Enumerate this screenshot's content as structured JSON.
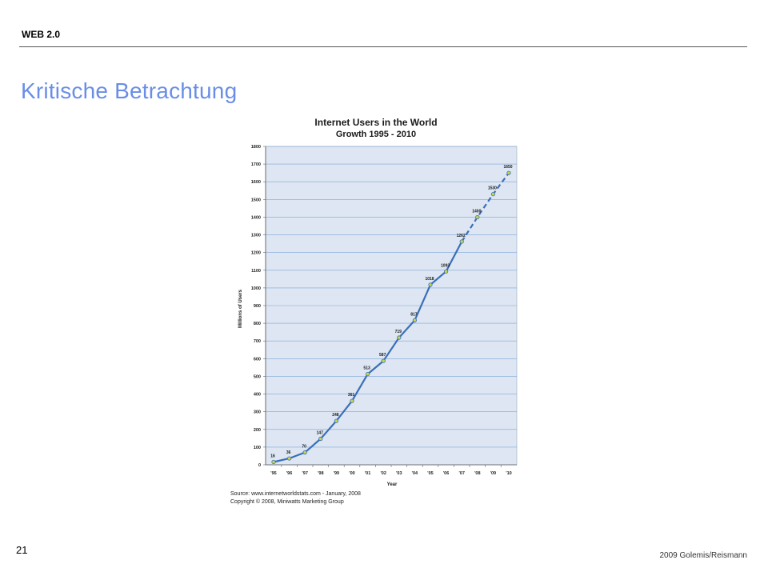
{
  "slide": {
    "header": "WEB 2.0",
    "title": "Kritische Betrachtung",
    "number": "21",
    "copyright": "2009 Golemis/Reismann"
  },
  "chart_data": {
    "type": "line",
    "title": "Internet Users in the World",
    "subtitle": "Growth 1995 - 2010",
    "xlabel": "Year",
    "ylabel": "Millions of Users",
    "ylim": [
      0,
      1800
    ],
    "yticks": [
      0,
      100,
      200,
      300,
      400,
      500,
      600,
      700,
      800,
      900,
      1000,
      1100,
      1200,
      1300,
      1400,
      1500,
      1600,
      1700,
      1800
    ],
    "categories": [
      "'95",
      "'96",
      "'97",
      "'98",
      "'99",
      "'00",
      "'01",
      "'02",
      "'03",
      "'04",
      "'05",
      "'06",
      "'07",
      "'08",
      "'09",
      "'10"
    ],
    "values": [
      16,
      36,
      70,
      147,
      248,
      361,
      513,
      587,
      719,
      817,
      1018,
      1093,
      1262,
      1400,
      1530,
      1650
    ],
    "projected_from_index": 12,
    "grid": true,
    "colors": {
      "plot_bg": "#dde6f2",
      "grid": "#7fa6d8",
      "line": "#3a6fb7",
      "marker_fill": "#c8d44a",
      "marker_stroke": "#3a6fb7"
    },
    "source": "Source: www.internetworldstats.com - January, 2008",
    "copyright": "Copyright © 2008, Miniwatts Marketing Group"
  }
}
